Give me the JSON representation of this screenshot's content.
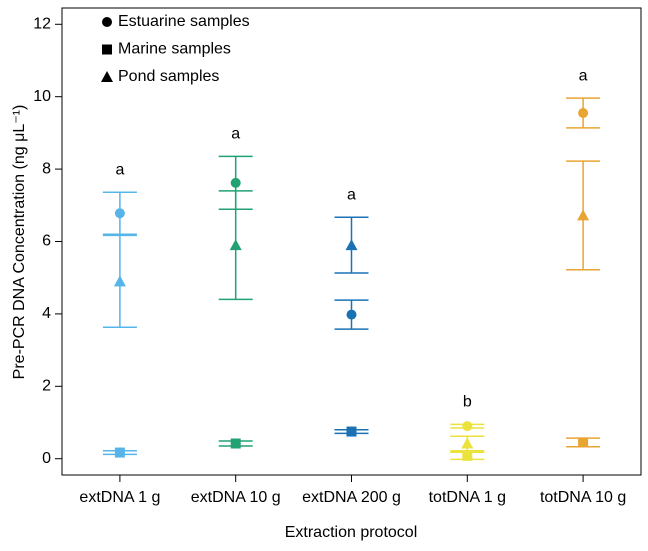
{
  "chart_data": {
    "type": "errorbar",
    "x_label": "Extraction protocol",
    "y_label": "Pre-PCR DNA Concentration (ng μL⁻¹)",
    "categories": [
      "extDNA 1 g",
      "extDNA 10 g",
      "extDNA 200 g",
      "totDNA 1 g",
      "totDNA 10 g"
    ],
    "category_colors": [
      "#56b4e9",
      "#22a273",
      "#1a72b5",
      "#ece23c",
      "#e9a532"
    ],
    "letters": [
      "a",
      "a",
      "a",
      "b",
      "a"
    ],
    "series": [
      {
        "name": "Estuarine samples",
        "marker": "circle",
        "color": "#000000",
        "values": [
          6.78,
          7.62,
          3.98,
          0.9,
          9.55
        ],
        "errors": [
          0.58,
          0.73,
          0.4,
          0.05,
          0.41
        ]
      },
      {
        "name": "Marine samples",
        "marker": "square",
        "color": "#000000",
        "values": [
          0.17,
          0.42,
          0.75,
          0.08,
          0.45
        ],
        "errors": [
          0.05,
          0.07,
          0.05,
          0.1,
          0.12
        ]
      },
      {
        "name": "Pond samples",
        "marker": "triangle",
        "color": "#000000",
        "values": [
          4.9,
          5.9,
          5.9,
          0.42,
          6.72
        ],
        "errors": [
          1.27,
          1.5,
          0.77,
          0.2,
          1.5
        ]
      }
    ],
    "ylim": [
      -0.45,
      12.45
    ],
    "yticks": [
      0,
      2,
      4,
      6,
      8,
      10,
      12
    ],
    "legend": "upper-left"
  }
}
